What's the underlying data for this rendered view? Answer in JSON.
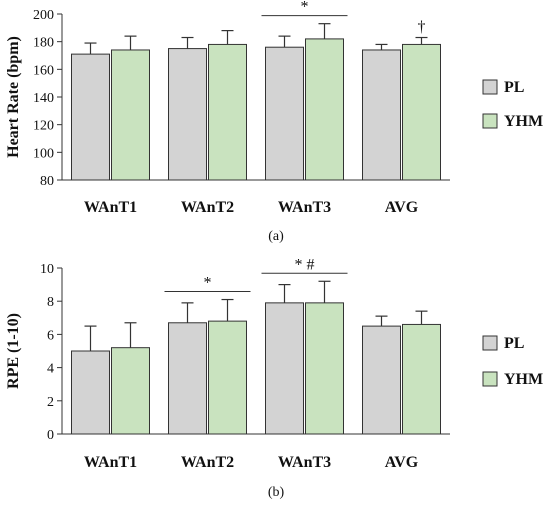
{
  "colors": {
    "pl": "#d3d3d3",
    "yhm": "#c9e3bf",
    "stroke": "#333333"
  },
  "chart_data": [
    {
      "type": "bar",
      "panel_label": "(a)",
      "ylabel": "Heart Rate (bpm)",
      "ylim": [
        80,
        200
      ],
      "yticks": [
        "80",
        "100",
        "120",
        "140",
        "160",
        "180",
        "200"
      ],
      "ytick_values": [
        80,
        100,
        120,
        140,
        160,
        180,
        200
      ],
      "categories": [
        "WAnT1",
        "WAnT2",
        "WAnT3",
        "AVG"
      ],
      "legend": [
        "PL",
        "YHM"
      ],
      "legend_position": "right",
      "series": [
        {
          "name": "PL",
          "values": [
            171,
            175,
            176,
            174
          ],
          "errors": [
            8,
            8,
            8,
            4
          ]
        },
        {
          "name": "YHM",
          "values": [
            174,
            178,
            182,
            178
          ],
          "errors": [
            10,
            10,
            11,
            5
          ]
        }
      ],
      "annotations": [
        {
          "text": "*",
          "category": "WAnT3",
          "bracket": true
        },
        {
          "text": "†",
          "category": "AVG",
          "bracket": false
        }
      ]
    },
    {
      "type": "bar",
      "panel_label": "(b)",
      "ylabel": "RPE (1-10)",
      "ylim": [
        0,
        10
      ],
      "yticks": [
        "0",
        "2",
        "4",
        "6",
        "8",
        "10"
      ],
      "ytick_values": [
        0,
        2,
        4,
        6,
        8,
        10
      ],
      "categories": [
        "WAnT1",
        "WAnT2",
        "WAnT3",
        "AVG"
      ],
      "legend": [
        "PL",
        "YHM"
      ],
      "legend_position": "right",
      "series": [
        {
          "name": "PL",
          "values": [
            5.0,
            6.7,
            7.9,
            6.5
          ],
          "errors": [
            1.5,
            1.2,
            1.1,
            0.6
          ]
        },
        {
          "name": "YHM",
          "values": [
            5.2,
            6.8,
            7.9,
            6.6
          ],
          "errors": [
            1.5,
            1.3,
            1.3,
            0.8
          ]
        }
      ],
      "annotations": [
        {
          "text": "*",
          "category": "WAnT2",
          "bracket": true
        },
        {
          "text": "* #",
          "category": "WAnT3",
          "bracket": true
        }
      ]
    }
  ]
}
